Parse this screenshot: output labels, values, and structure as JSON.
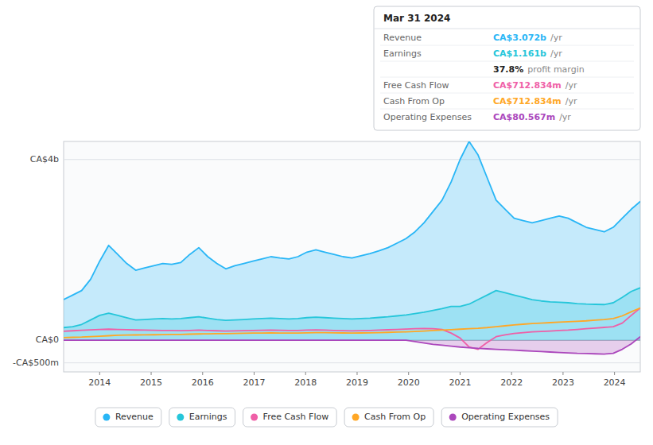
{
  "chart_data": {
    "type": "line",
    "annotations": [
      {
        "text": "Mar 31 2024"
      },
      {
        "label": "Revenue",
        "value": "CA$3.072b",
        "suffix": "/yr"
      },
      {
        "label": "Earnings",
        "value": "CA$1.161b",
        "suffix": "/yr"
      },
      {
        "value": "37.8%",
        "suffix": "profit margin"
      },
      {
        "label": "Free Cash Flow",
        "value": "CA$712.834m",
        "suffix": "/yr"
      },
      {
        "label": "Cash From Op",
        "value": "CA$712.834m",
        "suffix": "/yr"
      },
      {
        "label": "Operating Expenses",
        "value": "CA$80.567m",
        "suffix": "/yr"
      }
    ],
    "x": [
      2013.3,
      2013.475,
      2013.65,
      2013.825,
      2014,
      2014.175,
      2014.35,
      2014.525,
      2014.7,
      2014.875,
      2015.05,
      2015.225,
      2015.4,
      2015.575,
      2015.75,
      2015.925,
      2016.1,
      2016.275,
      2016.45,
      2016.625,
      2016.8,
      2016.975,
      2017.15,
      2017.325,
      2017.5,
      2017.675,
      2017.85,
      2018.025,
      2018.2,
      2018.375,
      2018.55,
      2018.725,
      2018.9,
      2019.075,
      2019.25,
      2019.425,
      2019.6,
      2019.775,
      2019.95,
      2020.125,
      2020.3,
      2020.475,
      2020.65,
      2020.825,
      2021,
      2021.175,
      2021.35,
      2021.525,
      2021.7,
      2021.875,
      2022.05,
      2022.225,
      2022.4,
      2022.575,
      2022.75,
      2022.925,
      2023.1,
      2023.275,
      2023.45,
      2023.625,
      2023.8,
      2023.975,
      2024.15,
      2024.325,
      2024.5
    ],
    "series": [
      {
        "name": "Revenue",
        "color": "#29b6f6",
        "type": "area",
        "values": [
          900,
          1000,
          1100,
          1350,
          1750,
          2100,
          1900,
          1700,
          1550,
          1600,
          1650,
          1700,
          1680,
          1720,
          1900,
          2050,
          1850,
          1700,
          1580,
          1650,
          1700,
          1750,
          1800,
          1850,
          1820,
          1800,
          1850,
          1950,
          2000,
          1950,
          1900,
          1850,
          1820,
          1870,
          1920,
          1980,
          2050,
          2150,
          2250,
          2400,
          2600,
          2850,
          3100,
          3500,
          4000,
          4400,
          4100,
          3600,
          3100,
          2900,
          2700,
          2650,
          2600,
          2650,
          2700,
          2750,
          2700,
          2600,
          2500,
          2450,
          2400,
          2500,
          2700,
          2900,
          3072
        ]
      },
      {
        "name": "Earnings",
        "color": "#26c6da",
        "type": "area",
        "values": [
          280,
          300,
          350,
          450,
          550,
          600,
          550,
          500,
          450,
          460,
          470,
          480,
          470,
          480,
          500,
          520,
          490,
          460,
          440,
          450,
          460,
          470,
          480,
          490,
          480,
          470,
          480,
          500,
          510,
          500,
          490,
          480,
          470,
          480,
          490,
          505,
          520,
          540,
          560,
          590,
          620,
          660,
          700,
          750,
          750,
          800,
          900,
          1000,
          1100,
          1050,
          1000,
          950,
          900,
          870,
          850,
          840,
          830,
          810,
          800,
          795,
          790,
          830,
          950,
          1080,
          1161
        ]
      },
      {
        "name": "Free Cash Flow",
        "color": "#ef5fa7",
        "type": "line",
        "values": [
          200,
          210,
          220,
          230,
          240,
          245,
          240,
          235,
          228,
          225,
          222,
          218,
          215,
          212,
          218,
          225,
          218,
          210,
          205,
          208,
          212,
          216,
          220,
          224,
          220,
          215,
          218,
          225,
          230,
          225,
          218,
          212,
          208,
          212,
          218,
          225,
          232,
          240,
          248,
          255,
          260,
          255,
          240,
          160,
          50,
          -150,
          -200,
          -50,
          80,
          120,
          150,
          170,
          185,
          195,
          205,
          215,
          225,
          240,
          255,
          270,
          285,
          300,
          380,
          550,
          713
        ]
      },
      {
        "name": "Cash From Op",
        "color": "#ffa726",
        "type": "line",
        "values": [
          60,
          65,
          70,
          80,
          90,
          100,
          110,
          115,
          118,
          120,
          122,
          125,
          128,
          130,
          135,
          140,
          142,
          145,
          148,
          150,
          155,
          158,
          160,
          162,
          160,
          158,
          160,
          165,
          170,
          168,
          165,
          162,
          160,
          162,
          165,
          170,
          175,
          180,
          185,
          195,
          205,
          215,
          225,
          235,
          245,
          255,
          265,
          280,
          300,
          320,
          340,
          355,
          370,
          380,
          390,
          400,
          410,
          420,
          430,
          445,
          460,
          480,
          540,
          630,
          713
        ]
      },
      {
        "name": "Operating Expenses",
        "color": "#ab47bc",
        "type": "area",
        "values": [
          0,
          0,
          0,
          0,
          0,
          0,
          0,
          0,
          0,
          0,
          0,
          0,
          0,
          0,
          0,
          0,
          0,
          0,
          0,
          0,
          0,
          0,
          0,
          0,
          0,
          0,
          0,
          0,
          0,
          0,
          0,
          0,
          0,
          0,
          0,
          0,
          0,
          0,
          0,
          -30,
          -60,
          -90,
          -110,
          -130,
          -150,
          -165,
          -180,
          -190,
          -200,
          -210,
          -220,
          -230,
          -240,
          -250,
          -260,
          -270,
          -280,
          -290,
          -295,
          -300,
          -305,
          -290,
          -200,
          -80,
          81
        ]
      }
    ],
    "xlim": [
      2013.3,
      2024.5
    ],
    "xticks": [
      2014,
      2015,
      2016,
      2017,
      2018,
      2019,
      2020,
      2021,
      2022,
      2023,
      2024
    ],
    "ylim": [
      -700,
      4400
    ],
    "yticks": [
      {
        "value": 4000,
        "label": "CA$4b"
      },
      {
        "value": 0,
        "label": "CA$0"
      },
      {
        "value": -500,
        "label": "-CA$500m"
      }
    ],
    "tick_labels": true,
    "grid": true,
    "legend": "bottom"
  }
}
